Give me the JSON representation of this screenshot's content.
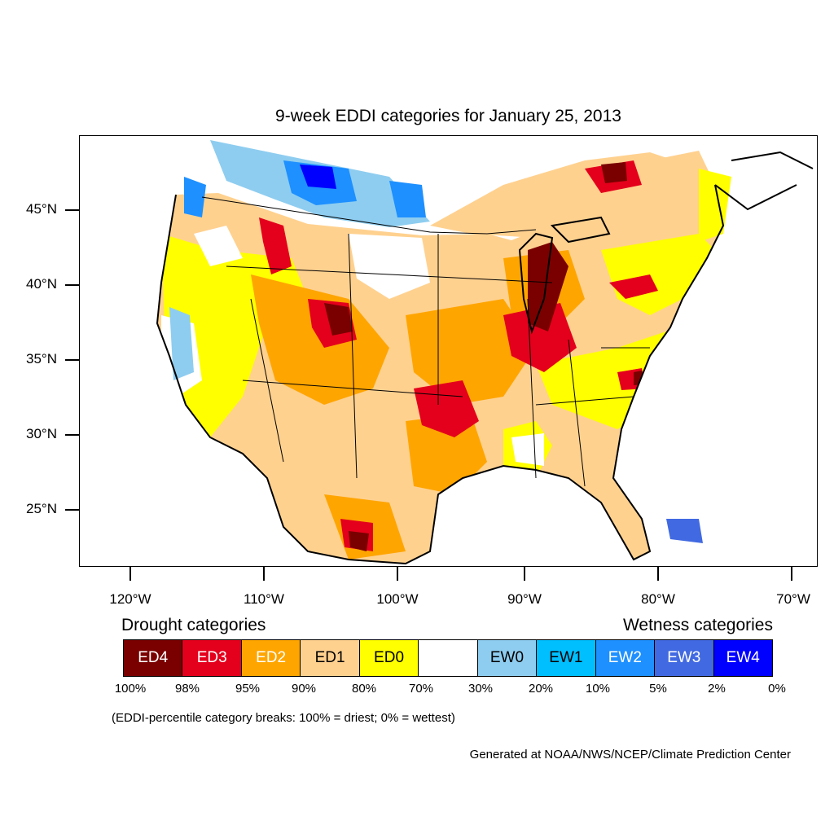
{
  "title": "9-week EDDI categories for January 25, 2013",
  "axes": {
    "lat_labels": [
      "45°N",
      "40°N",
      "35°N",
      "30°N",
      "25°N"
    ],
    "lon_labels": [
      "120°W",
      "110°W",
      "100°W",
      "90°W",
      "80°W",
      "70°W"
    ]
  },
  "legend": {
    "drought_heading": "Drought categories",
    "wetness_heading": "Wetness categories",
    "categories": [
      {
        "label": "ED4",
        "color": "#7a0000",
        "text_color": "#ffffff"
      },
      {
        "label": "ED3",
        "color": "#e4001c",
        "text_color": "#ffffff"
      },
      {
        "label": "ED2",
        "color": "#ffa500",
        "text_color": "#ffffff"
      },
      {
        "label": "ED1",
        "color": "#ffd18f",
        "text_color": "#000000"
      },
      {
        "label": "ED0",
        "color": "#ffff00",
        "text_color": "#000000"
      },
      {
        "label": "",
        "color": "#ffffff",
        "text_color": "#000000"
      },
      {
        "label": "EW0",
        "color": "#8ecdf0",
        "text_color": "#000000"
      },
      {
        "label": "EW1",
        "color": "#00bfff",
        "text_color": "#000000"
      },
      {
        "label": "EW2",
        "color": "#1e90ff",
        "text_color": "#ffffff"
      },
      {
        "label": "EW3",
        "color": "#4169e1",
        "text_color": "#ffffff"
      },
      {
        "label": "EW4",
        "color": "#0000ff",
        "text_color": "#ffffff"
      }
    ],
    "percentiles": [
      "100%",
      "98%",
      "95%",
      "90%",
      "80%",
      "70%",
      "30%",
      "20%",
      "10%",
      "5%",
      "2%",
      "0%"
    ]
  },
  "note": "(EDDI-percentile category breaks: 100% = driest; 0% = wettest)",
  "credit": "Generated at NOAA/NWS/NCEP/Climate Prediction Center"
}
